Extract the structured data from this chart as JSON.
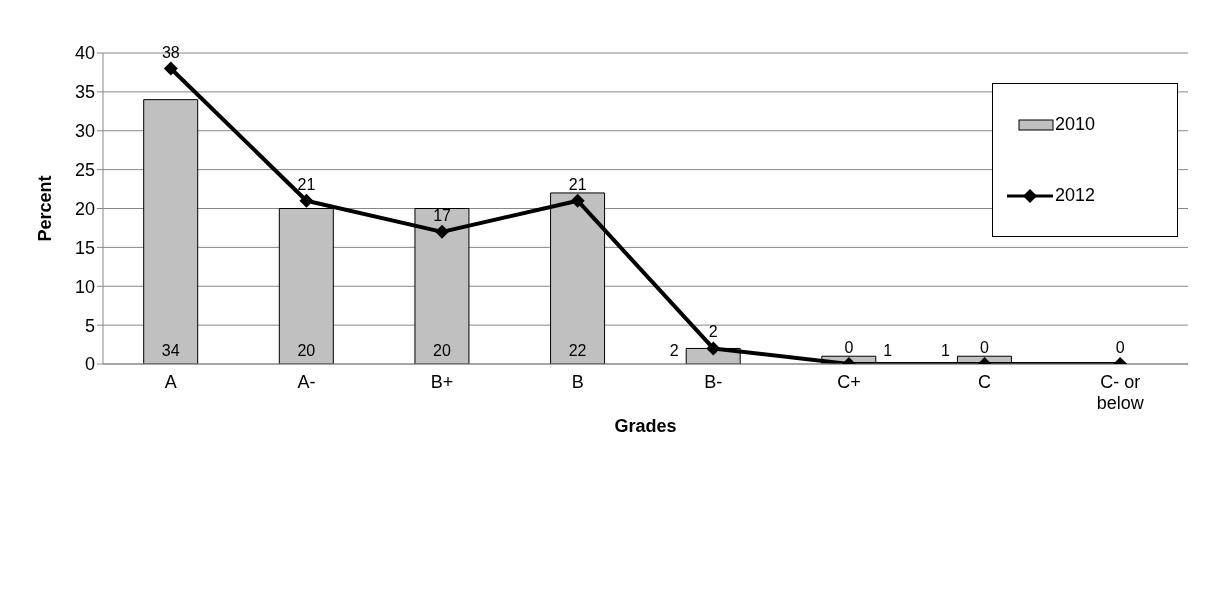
{
  "chart_data": {
    "type": "bar",
    "xlabel": "Grades",
    "ylabel": "Percent",
    "categories": [
      "A",
      "A-",
      "B+",
      "B",
      "B-",
      "C+",
      "C",
      "C- or below"
    ],
    "series": [
      {
        "name": "2010",
        "color": "#c0c0c0",
        "values": [
          34,
          20,
          20,
          22,
          2,
          1,
          1,
          0
        ],
        "value_labels": [
          "34",
          "20",
          "20",
          "22",
          "2",
          "1",
          "1",
          null
        ]
      },
      {
        "name": "2012",
        "type": "line",
        "color": "#000000",
        "marker": "diamond",
        "values": [
          38,
          21,
          17,
          21,
          2,
          0,
          0,
          0
        ],
        "value_labels": [
          "38",
          "21",
          "17",
          "21",
          "2",
          "0",
          "0",
          "0"
        ]
      }
    ],
    "ylim": [
      0,
      40
    ],
    "yticks": [
      0,
      5,
      10,
      15,
      20,
      25,
      30,
      35,
      40
    ],
    "grid": "y",
    "legend": "top right"
  }
}
